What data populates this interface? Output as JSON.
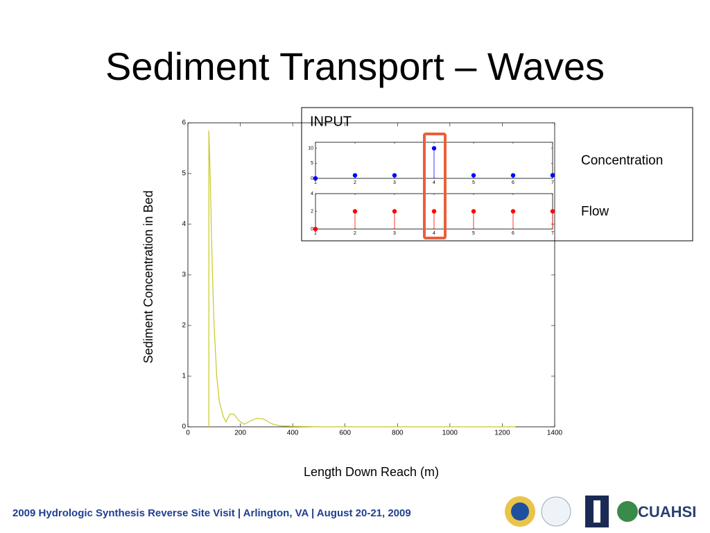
{
  "title": "Sediment Transport – Waves",
  "footer": "2009 Hydrologic Synthesis Reverse Site Visit | Arlington, VA | August 20-21, 2009",
  "logos": [
    "CUAHSI"
  ],
  "inset_title": "INPUT",
  "chart_data": [
    {
      "type": "line",
      "xlabel": "Length Down Reach (m)",
      "ylabel": "Sediment Concentration in Bed",
      "xlim": [
        0,
        1400
      ],
      "xticks": [
        0,
        200,
        400,
        600,
        800,
        1000,
        1200,
        1400
      ],
      "ylim": [
        0,
        6
      ],
      "yticks": [
        0,
        1,
        2,
        3,
        4,
        5,
        6
      ],
      "series": [
        {
          "color": "#c8c820",
          "x": [
            80,
            80,
            85,
            90,
            95,
            100,
            110,
            120,
            135,
            145,
            160,
            175,
            195,
            215,
            240,
            265,
            290,
            320,
            350,
            400,
            500,
            1250
          ],
          "values": [
            0,
            5.85,
            5.0,
            3.8,
            2.8,
            2.0,
            1.0,
            0.5,
            0.2,
            0.1,
            0.25,
            0.25,
            0.12,
            0.05,
            0.12,
            0.17,
            0.15,
            0.06,
            0.02,
            0.01,
            0,
            0
          ]
        }
      ]
    },
    {
      "type": "stem",
      "xlim": [
        1,
        7
      ],
      "xticks": [
        1,
        2,
        3,
        4,
        5,
        6,
        7
      ],
      "ylim": [
        0,
        12
      ],
      "yticks": [
        0,
        5,
        10
      ],
      "series": [
        {
          "name": "Concentration",
          "color": "#0000ff",
          "x": [
            1,
            2,
            3,
            4,
            5,
            6,
            7
          ],
          "values": [
            0,
            1,
            1,
            10,
            1,
            1,
            1
          ]
        }
      ]
    },
    {
      "type": "stem",
      "xlim": [
        1,
        7
      ],
      "xticks": [
        1,
        2,
        3,
        4,
        5,
        6,
        7
      ],
      "ylim": [
        0,
        4
      ],
      "yticks": [
        0,
        2,
        4
      ],
      "series": [
        {
          "name": "Flow",
          "color": "#ff0000",
          "x": [
            1,
            2,
            3,
            4,
            5,
            6,
            7
          ],
          "values": [
            0,
            2,
            2,
            2,
            2,
            2,
            2
          ]
        }
      ]
    }
  ]
}
